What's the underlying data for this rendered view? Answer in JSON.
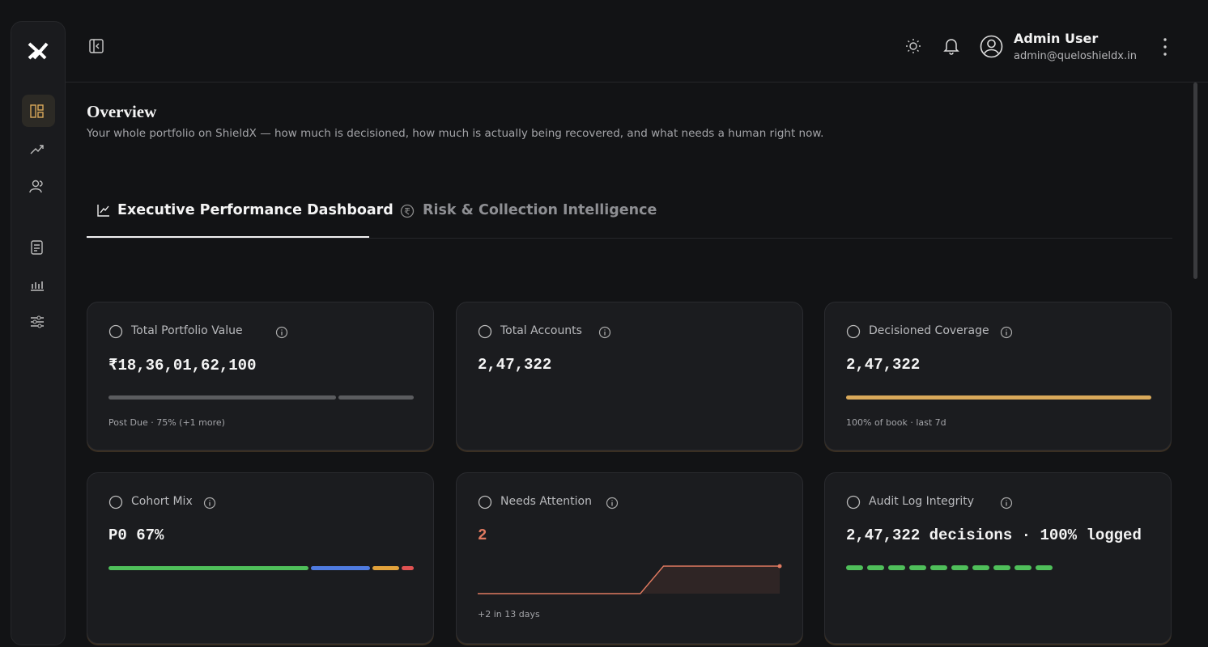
{
  "header": {
    "user_name": "Admin User",
    "user_email": "admin@queloshieldx.in"
  },
  "page": {
    "title": "Overview",
    "subtitle": "Your whole portfolio on ShieldX — how much is decisioned, how much is actually being recovered, and what needs a human right now."
  },
  "tabs": [
    "Executive Performance Dashboard",
    "Risk & Collection Intelligence"
  ],
  "cards": [
    {
      "title": "Total Portfolio Value",
      "value": "₹18,36,01,62,100",
      "bar": [
        75,
        25
      ],
      "bar_colors": [
        "#5b5c5f",
        "#5b5c5f"
      ],
      "note": "Post Due · 75% (+1 more)"
    },
    {
      "title": "Total Accounts",
      "value": "2,47,322"
    },
    {
      "title": "Decisioned Coverage",
      "value": "2,47,322",
      "bar": [
        100
      ],
      "bar_colors": [
        "#d9a95a"
      ],
      "note": "100% of book · last 7d"
    },
    {
      "title": "Cohort Mix",
      "value": "P0 67%",
      "bar": [
        67,
        20,
        9,
        4
      ],
      "bar_colors": [
        "#4fbf5a",
        "#4f7be0",
        "#e2a23b",
        "#e05252"
      ]
    },
    {
      "title": "Needs Attention",
      "value": "2",
      "sparkline": [
        0,
        0,
        0,
        0,
        0,
        0,
        0,
        0,
        2,
        2,
        2,
        2,
        2,
        2
      ],
      "note": "+2 in 13 days"
    },
    {
      "title": "Audit Log Integrity",
      "value": "2,47,322 decisions · 100% logged"
    }
  ]
}
